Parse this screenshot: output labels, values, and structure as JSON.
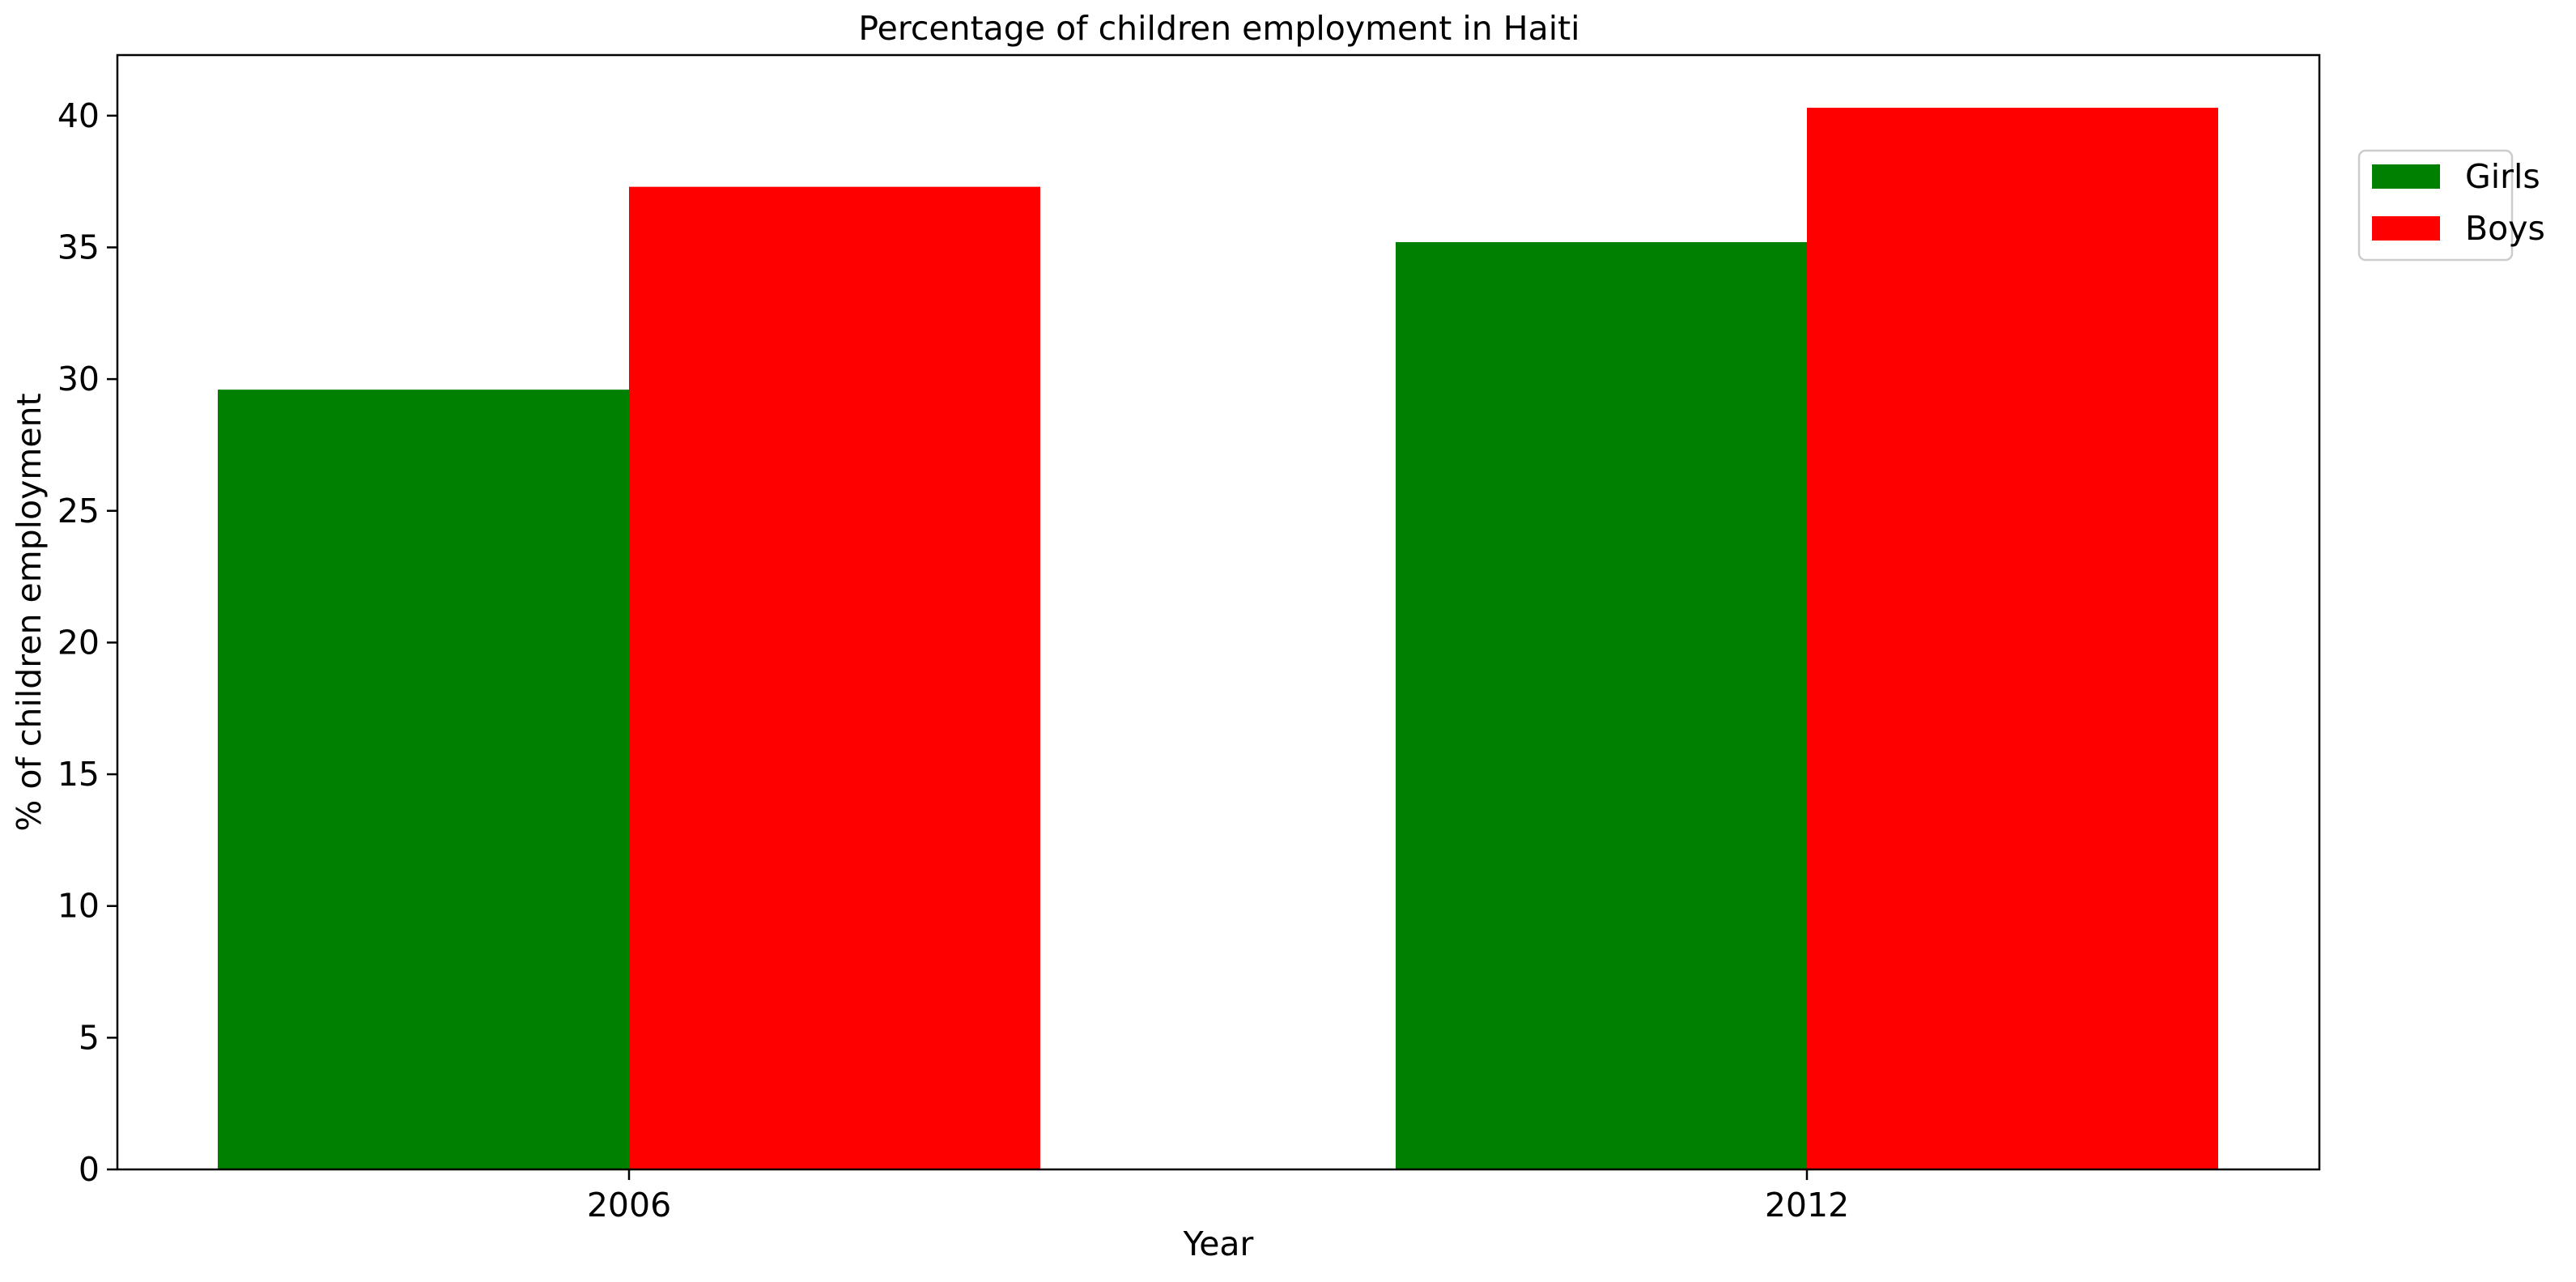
{
  "chart_data": {
    "type": "bar",
    "title": "Percentage of children employment in Haiti",
    "xlabel": "Year",
    "ylabel": "% of children employment",
    "categories": [
      "2006",
      "2012"
    ],
    "series": [
      {
        "name": "Girls",
        "color": "#008000",
        "values": [
          29.6,
          35.2
        ]
      },
      {
        "name": "Boys",
        "color": "#ff0000",
        "values": [
          37.3,
          40.3
        ]
      }
    ],
    "ylim": [
      0,
      42.3
    ],
    "yticks": [
      0,
      5,
      10,
      15,
      20,
      25,
      30,
      35,
      40
    ],
    "grid": false,
    "legend_position": "upper right, outside plot area"
  }
}
